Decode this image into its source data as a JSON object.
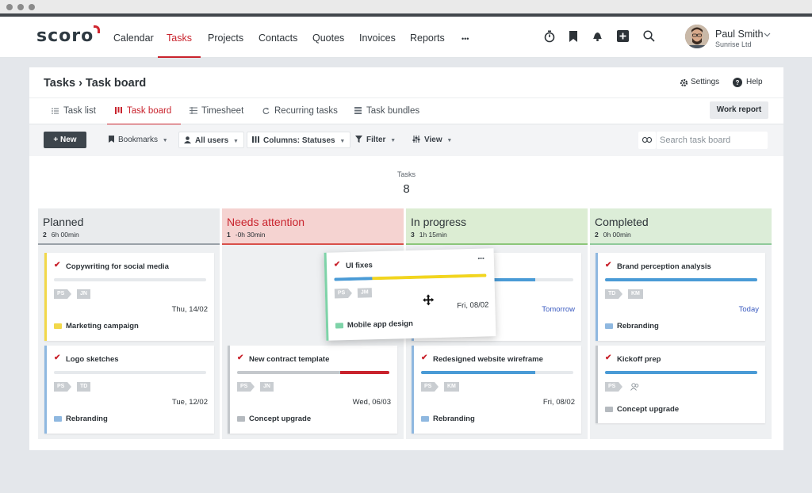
{
  "nav": {
    "logo": "scoro",
    "items": [
      "Calendar",
      "Tasks",
      "Projects",
      "Contacts",
      "Quotes",
      "Invoices",
      "Reports",
      "•••"
    ],
    "active": "Tasks",
    "user_name": "Paul Smith",
    "user_company": "Sunrise Ltd",
    "icons": [
      "timer-icon",
      "bookmark-icon",
      "bell-icon",
      "add-icon",
      "search-icon"
    ]
  },
  "page": {
    "title": "Tasks › Task board",
    "settings": "Settings",
    "help": "Help",
    "tabs": [
      "Task list",
      "Task board",
      "Timesheet",
      "Recurring tasks",
      "Task bundles"
    ],
    "active_tab": "Task board",
    "work_report": "Work report"
  },
  "toolbar": {
    "new": "+ New",
    "bookmarks": "Bookmarks",
    "users": "All users",
    "columns_prefix": "Columns:",
    "columns_value": "Statuses",
    "filter": "Filter",
    "view": "View",
    "search_placeholder": "Search task board"
  },
  "summary": {
    "label": "Tasks",
    "count": "8"
  },
  "colors": {
    "accent": "#c9232d",
    "planned": "#e9ebed",
    "needs_attention": "#f5d3d1",
    "in_progress": "#dcedd3",
    "completed": "#dcedd8"
  },
  "columns": [
    {
      "title": "Planned",
      "count": "2",
      "time": "6h 00min",
      "cards": [
        {
          "title": "Copywriting for social media",
          "tags": [
            "PS",
            "JN"
          ],
          "date": "Thu, 14/02",
          "project": "Marketing campaign"
        },
        {
          "title": "Logo sketches",
          "tags": [
            "PS",
            "TD"
          ],
          "date": "Tue, 12/02",
          "project": "Rebranding"
        }
      ]
    },
    {
      "title": "Needs attention",
      "count": "1",
      "time": "-0h 30min",
      "cards": [
        {
          "title": "New contract template",
          "tags": [
            "PS",
            "JN"
          ],
          "date": "Wed, 06/03",
          "project": "Concept upgrade"
        }
      ]
    },
    {
      "title": "In progress",
      "count": "3",
      "time": "1h 15min",
      "cards": [
        {
          "title": "",
          "tags": [],
          "date": "Tomorrow",
          "project": ""
        },
        {
          "title": "Redesigned website wireframe",
          "tags": [
            "PS",
            "KM"
          ],
          "date": "Fri, 08/02",
          "project": "Rebranding"
        }
      ]
    },
    {
      "title": "Completed",
      "count": "2",
      "time": "0h 00min",
      "cards": [
        {
          "title": "Brand perception analysis",
          "tags": [
            "TD",
            "KM"
          ],
          "date": "Today",
          "project": "Rebranding"
        },
        {
          "title": "Kickoff prep",
          "tags": [
            "PS"
          ],
          "date": "",
          "project": "Concept upgrade"
        }
      ]
    }
  ],
  "dragging_card": {
    "title": "UI fixes",
    "tags": [
      "PS",
      "JM"
    ],
    "date": "Fri, 08/02",
    "project": "Mobile app design",
    "more": "•••"
  }
}
